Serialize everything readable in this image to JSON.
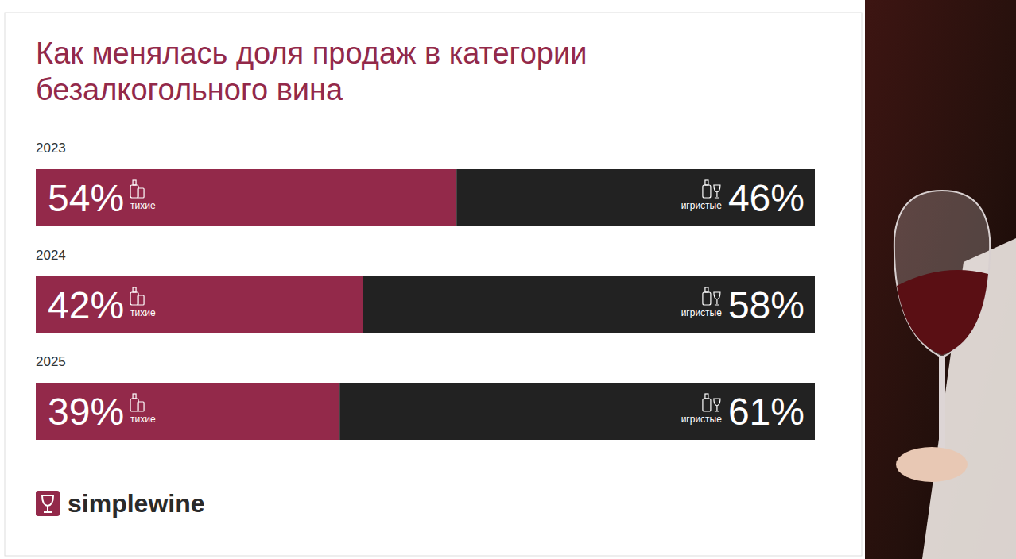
{
  "chart_data": {
    "type": "bar",
    "title": "Как менялась доля продаж в категории безалкогольного вина",
    "orientation": "horizontal",
    "stacked": true,
    "data_labels": true,
    "tick_labels": false,
    "grid": false,
    "categories": [
      "2023",
      "2024",
      "2025"
    ],
    "xlim": [
      0,
      100
    ],
    "series": [
      {
        "name": "тихие",
        "color": "#93294a",
        "values": [
          54,
          42,
          39
        ],
        "value_labels": [
          "54%",
          "42%",
          "39%"
        ]
      },
      {
        "name": "игристые",
        "color": "#222222",
        "values": [
          46,
          58,
          61
        ],
        "value_labels": [
          "46%",
          "58%",
          "61%"
        ]
      }
    ],
    "annotations": [
      "simplewine"
    ]
  }
}
